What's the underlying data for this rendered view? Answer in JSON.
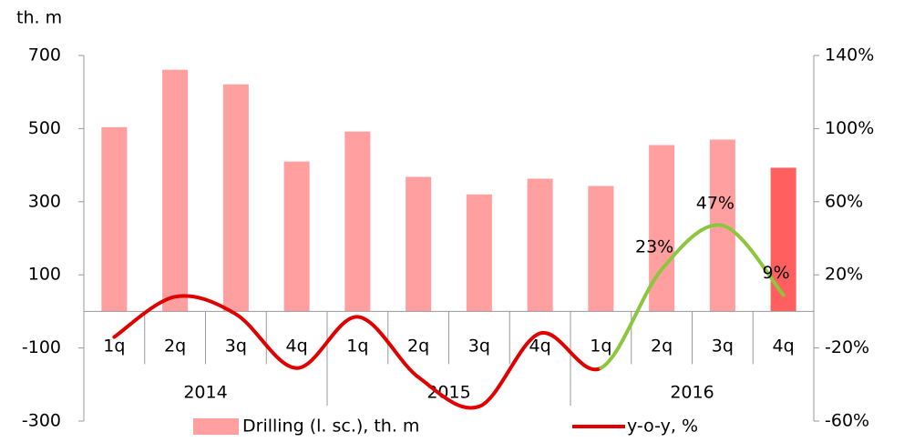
{
  "chart_data": {
    "type": "bar_line",
    "y_unit_label": "th. m",
    "categories": [
      "1q",
      "2q",
      "3q",
      "4q",
      "1q",
      "2q",
      "3q",
      "4q",
      "1q",
      "2q",
      "3q",
      "4q"
    ],
    "groups": [
      {
        "label": "2014",
        "span": 4
      },
      {
        "label": "2015",
        "span": 4
      },
      {
        "label": "2016",
        "span": 4
      }
    ],
    "series": [
      {
        "name": "Drilling (l. sc.), th. m",
        "type": "bar",
        "color": "#ff9f9f",
        "colors": [
          "#ff9f9f",
          "#ff9f9f",
          "#ff9f9f",
          "#ff9f9f",
          "#ff9f9f",
          "#ff9f9f",
          "#ff9f9f",
          "#ff9f9f",
          "#ff9f9f",
          "#ff9f9f",
          "#ff9f9f",
          "#ff5f5f"
        ],
        "values": [
          504,
          661,
          621,
          410,
          492,
          368,
          320,
          363,
          343,
          455,
          470,
          393
        ]
      },
      {
        "name": "y-o-y, %",
        "type": "line",
        "axis": "y2",
        "color": "#e00000",
        "colors": [
          "#e00000",
          "#e00000",
          "#e00000",
          "#e00000",
          "#e00000",
          "#e00000",
          "#e00000",
          "#e00000",
          "#e00000",
          "#8cc63f",
          "#8cc63f",
          "#8cc63f"
        ],
        "values": [
          -14,
          8,
          -1.5,
          -31,
          -3,
          -36,
          -52,
          -12,
          -31,
          23,
          47,
          9
        ],
        "value_labels": [
          null,
          null,
          null,
          null,
          null,
          null,
          null,
          null,
          null,
          "23%",
          "47%",
          "9%"
        ]
      }
    ],
    "ylim": [
      -300,
      700
    ],
    "yticks": [
      -300,
      -100,
      100,
      300,
      500,
      700
    ],
    "y2lim": [
      -60,
      140
    ],
    "y2ticks": [
      {
        "value": -60,
        "label": "-60%"
      },
      {
        "value": -20,
        "label": "-20%"
      },
      {
        "value": 20,
        "label": "20%"
      },
      {
        "value": 60,
        "label": "60%"
      },
      {
        "value": 100,
        "label": "100%"
      },
      {
        "value": 140,
        "label": "140%"
      }
    ],
    "legend": "bottom"
  }
}
